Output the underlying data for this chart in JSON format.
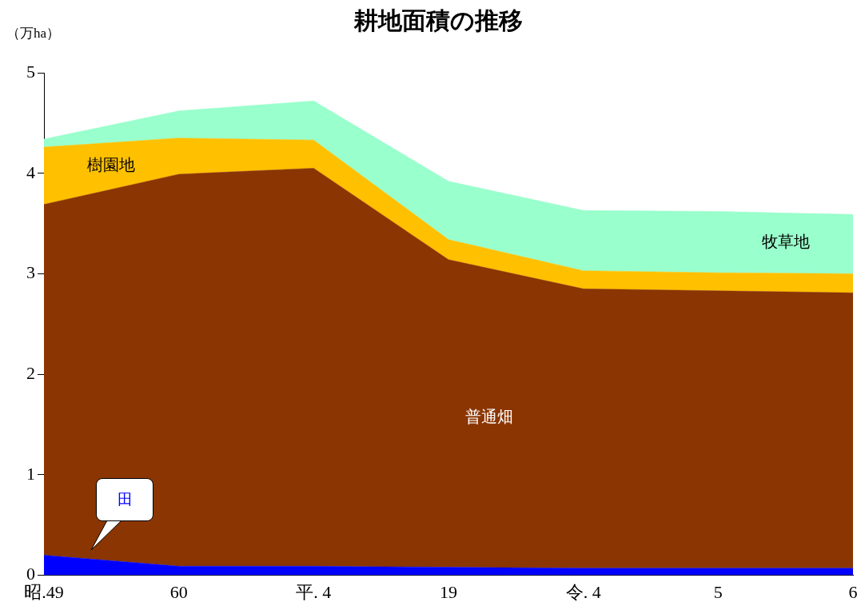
{
  "chart_data": {
    "type": "area",
    "title": "耕地面積の推移",
    "ylabel": "（万ha）",
    "categories": [
      "昭.49",
      "60",
      "平. 4",
      "19",
      "令. 4",
      "5",
      "6"
    ],
    "stacked": true,
    "ylim": [
      0,
      5
    ],
    "yticks": [
      0,
      1,
      2,
      3,
      4,
      5
    ],
    "grid": false,
    "legend": false,
    "series": [
      {
        "name": "田",
        "color": "#0000ff",
        "values": [
          0.2,
          0.09,
          0.09,
          0.08,
          0.07,
          0.07,
          0.07
        ]
      },
      {
        "name": "普通畑",
        "color": "#8b3503",
        "values": [
          3.49,
          3.9,
          3.96,
          3.06,
          2.78,
          2.76,
          2.74
        ]
      },
      {
        "name": "樹園地",
        "color": "#ffc000",
        "values": [
          0.57,
          0.36,
          0.28,
          0.2,
          0.18,
          0.18,
          0.19
        ]
      },
      {
        "name": "牧草地",
        "color": "#99ffcc",
        "values": [
          0.08,
          0.27,
          0.39,
          0.58,
          0.6,
          0.61,
          0.59
        ]
      }
    ]
  }
}
